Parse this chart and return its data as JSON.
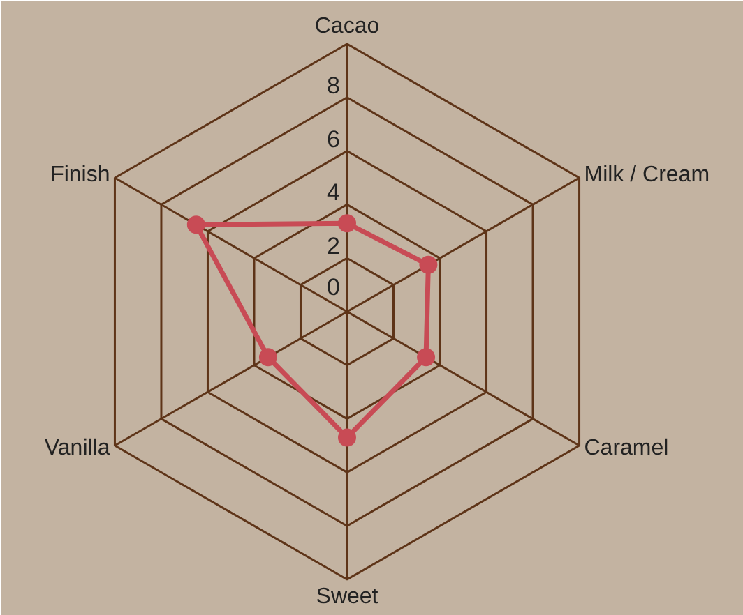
{
  "chart_data": {
    "type": "radar",
    "categories": [
      "Cacao",
      "Milk / Cream",
      "Caramel",
      "Sweet",
      "Vanilla",
      "Finish"
    ],
    "series": [
      {
        "color": "#c84b55",
        "values": [
          3.3,
          3.5,
          3.4,
          4.7,
          3.4,
          6.5
        ]
      }
    ],
    "ylim": [
      0,
      10
    ],
    "yticks": [
      0,
      2,
      4,
      6,
      8
    ],
    "grid": true,
    "marker": "circle",
    "line_style": "solid"
  }
}
